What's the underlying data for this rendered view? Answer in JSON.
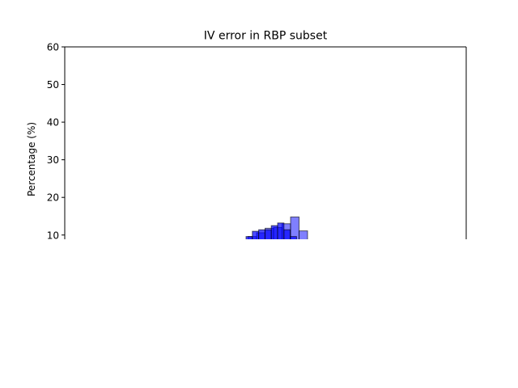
{
  "chart_data": {
    "type": "bar",
    "title": "IV error in RBP subset",
    "xlabel": "",
    "ylabel": "Percentage (%)",
    "ylim": [
      8.5,
      60
    ],
    "yticks": [
      10,
      20,
      30,
      40,
      50,
      60
    ],
    "grid": false,
    "colors": {
      "blue_dark": "#0000ff",
      "blue_light": "#0000ff",
      "edge": "#000000"
    },
    "series": [
      {
        "values": [
          9.6,
          10.6,
          11.8,
          12.0,
          13.0,
          14.8,
          11.1
        ],
        "x": [
          0,
          1,
          2,
          3,
          4,
          5,
          6
        ],
        "opacity": 0.5
      },
      {
        "values": [
          9.6,
          11.0,
          11.4,
          11.4,
          12.5,
          13.2,
          11.4,
          9.6
        ],
        "x": [
          0,
          1,
          2,
          3,
          4,
          5,
          6,
          7
        ],
        "opacity": 0.7
      }
    ]
  }
}
